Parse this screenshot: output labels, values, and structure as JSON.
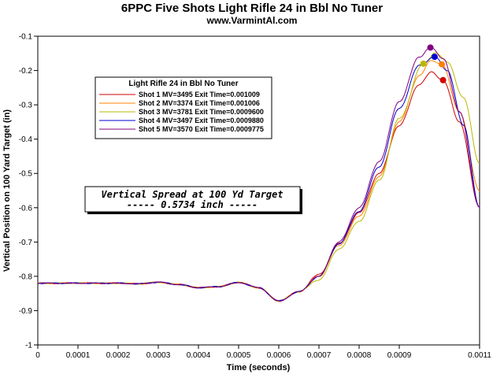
{
  "chart_data": {
    "type": "line",
    "title": "6PPC Five Shots Light Rifle 24 in Bbl No Tuner",
    "subtitle": "www.VarmintAl.com",
    "xlabel": "Time (seconds)",
    "ylabel": "Vertical Position on 100 Yard Target (in)",
    "xlim": [
      0,
      0.0011
    ],
    "ylim": [
      -1,
      -0.1
    ],
    "x_ticks": [
      "0",
      "0.0001",
      "0.0002",
      "0.0003",
      "0.0004",
      "0.0005",
      "0.0006",
      "0.0007",
      "0.0008",
      "0.0009",
      "0.0011"
    ],
    "x_tick_values": [
      0,
      0.0001,
      0.0002,
      0.0003,
      0.0004,
      0.0005,
      0.0006,
      0.0007,
      0.0008,
      0.0009,
      0.0011
    ],
    "y_ticks": [
      "-0.1",
      "-0.2",
      "-0.3",
      "-0.4",
      "-0.5",
      "-0.6",
      "-0.7",
      "-0.8",
      "-0.9",
      "-1"
    ],
    "y_tick_values": [
      -0.1,
      -0.2,
      -0.3,
      -0.4,
      -0.5,
      -0.6,
      -0.7,
      -0.8,
      -0.9,
      -1
    ],
    "grid": false,
    "legend": {
      "title": "Light Rifle 24 in Bbl  No Tuner",
      "placement": "top-left"
    },
    "annotation": {
      "line1": "Vertical Spread at 100 Yd Target",
      "line2": "----- 0.5734 inch -----"
    },
    "base_curve": {
      "x": [
        0,
        5e-05,
        0.0001,
        0.00015,
        0.0002,
        0.00025,
        0.0003,
        0.00035,
        0.0004,
        0.00045,
        0.0005,
        0.00055,
        0.0006,
        0.00065,
        0.0007,
        0.00075,
        0.0008,
        0.00085
      ],
      "y": [
        -0.82,
        -0.82,
        -0.82,
        -0.82,
        -0.82,
        -0.822,
        -0.817,
        -0.824,
        -0.833,
        -0.83,
        -0.818,
        -0.833,
        -0.872,
        -0.845,
        -0.795,
        -0.705,
        -0.61,
        -0.48
      ]
    },
    "series": [
      {
        "name": "Shot 1 MV=3495 Exit Time=0.001009",
        "color": "#d00000",
        "marker": {
          "x": 0.001009,
          "y": -0.228
        },
        "x": [
          0.0007,
          0.00075,
          0.0008,
          0.00085,
          0.0009,
          0.00095,
          0.00098,
          0.001009,
          0.00105,
          0.0011
        ],
        "y": [
          -0.795,
          -0.705,
          -0.615,
          -0.5,
          -0.36,
          -0.24,
          -0.205,
          -0.228,
          -0.35,
          -0.6
        ]
      },
      {
        "name": "Shot 2 MV=3374 Exit Time=0.001006",
        "color": "#ff8000",
        "marker": {
          "x": 0.001006,
          "y": -0.182
        },
        "x": [
          0.0007,
          0.00075,
          0.0008,
          0.00085,
          0.0009,
          0.00095,
          0.00098,
          0.001006,
          0.00105,
          0.0011
        ],
        "y": [
          -0.8,
          -0.71,
          -0.625,
          -0.51,
          -0.35,
          -0.215,
          -0.17,
          -0.182,
          -0.32,
          -0.55
        ]
      },
      {
        "name": "Shot 3 MV=3781 Exit Time=0.0009600",
        "color": "#b8b800",
        "marker": {
          "x": 0.00096,
          "y": -0.18
        },
        "x": [
          0.0007,
          0.00075,
          0.0008,
          0.00085,
          0.0009,
          0.00096,
          0.00099,
          0.00102,
          0.00106,
          0.0011
        ],
        "y": [
          -0.81,
          -0.72,
          -0.64,
          -0.52,
          -0.34,
          -0.18,
          -0.148,
          -0.175,
          -0.28,
          -0.47
        ]
      },
      {
        "name": "Shot 4 MV=3497 Exit Time=0.0009880",
        "color": "#0000d0",
        "marker": {
          "x": 0.000988,
          "y": -0.16
        },
        "x": [
          0.0007,
          0.00075,
          0.0008,
          0.00085,
          0.0009,
          0.00095,
          0.000988,
          0.00102,
          0.00106,
          0.0011
        ],
        "y": [
          -0.8,
          -0.705,
          -0.61,
          -0.48,
          -0.31,
          -0.185,
          -0.16,
          -0.2,
          -0.36,
          -0.6
        ]
      },
      {
        "name": "Shot 5 MV=3570 Exit Time=0.0009775",
        "color": "#800080",
        "marker": {
          "x": 0.0009775,
          "y": -0.133
        },
        "x": [
          0.0007,
          0.00075,
          0.0008,
          0.00085,
          0.0009,
          0.00095,
          0.0009775,
          0.00101,
          0.00105,
          0.0011
        ],
        "y": [
          -0.8,
          -0.7,
          -0.6,
          -0.465,
          -0.29,
          -0.16,
          -0.133,
          -0.165,
          -0.32,
          -0.6
        ]
      }
    ]
  }
}
